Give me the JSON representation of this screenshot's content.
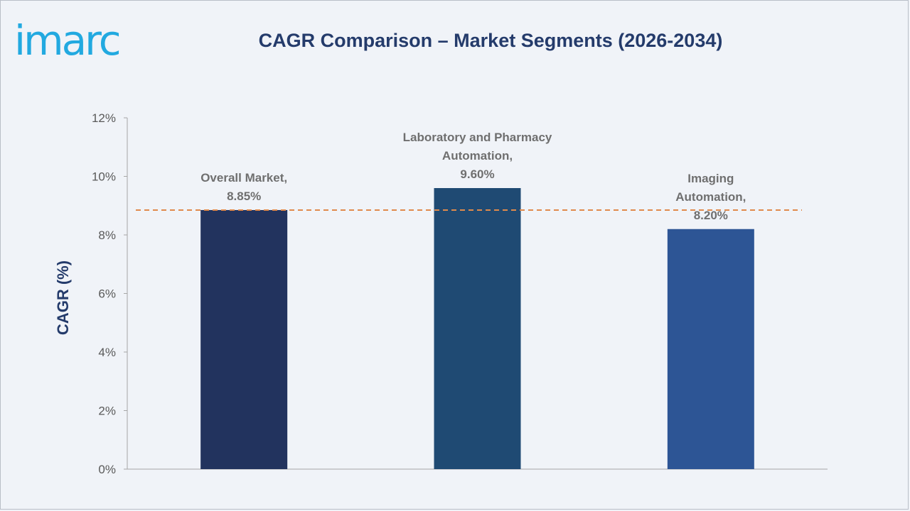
{
  "brand": {
    "logo_text": "imarc"
  },
  "chart_data": {
    "type": "bar",
    "title": "CAGR Comparison – Market Segments (2026-2034)",
    "ylabel": "CAGR (%)",
    "xlabel": "",
    "ylim": [
      0,
      12
    ],
    "yticks": [
      "0%",
      "2%",
      "4%",
      "6%",
      "8%",
      "10%",
      "12%"
    ],
    "ytick_values": [
      0,
      2,
      4,
      6,
      8,
      10,
      12
    ],
    "categories": [
      "Overall Market",
      "Laboratory and Pharmacy Automation",
      "Imaging Automation"
    ],
    "values": [
      8.85,
      9.6,
      8.2
    ],
    "data_labels": [
      [
        "Overall Market,",
        "8.85%"
      ],
      [
        "Laboratory and Pharmacy",
        "Automation,",
        "9.60%"
      ],
      [
        "Imaging",
        "Automation,",
        "8.20%"
      ]
    ],
    "bar_colors": [
      "#22335e",
      "#1f4a73",
      "#2d5595"
    ],
    "reference_line": {
      "value": 8.85,
      "style": "dashed",
      "color": "#e08a4c"
    },
    "grid": false,
    "legend": "none"
  }
}
